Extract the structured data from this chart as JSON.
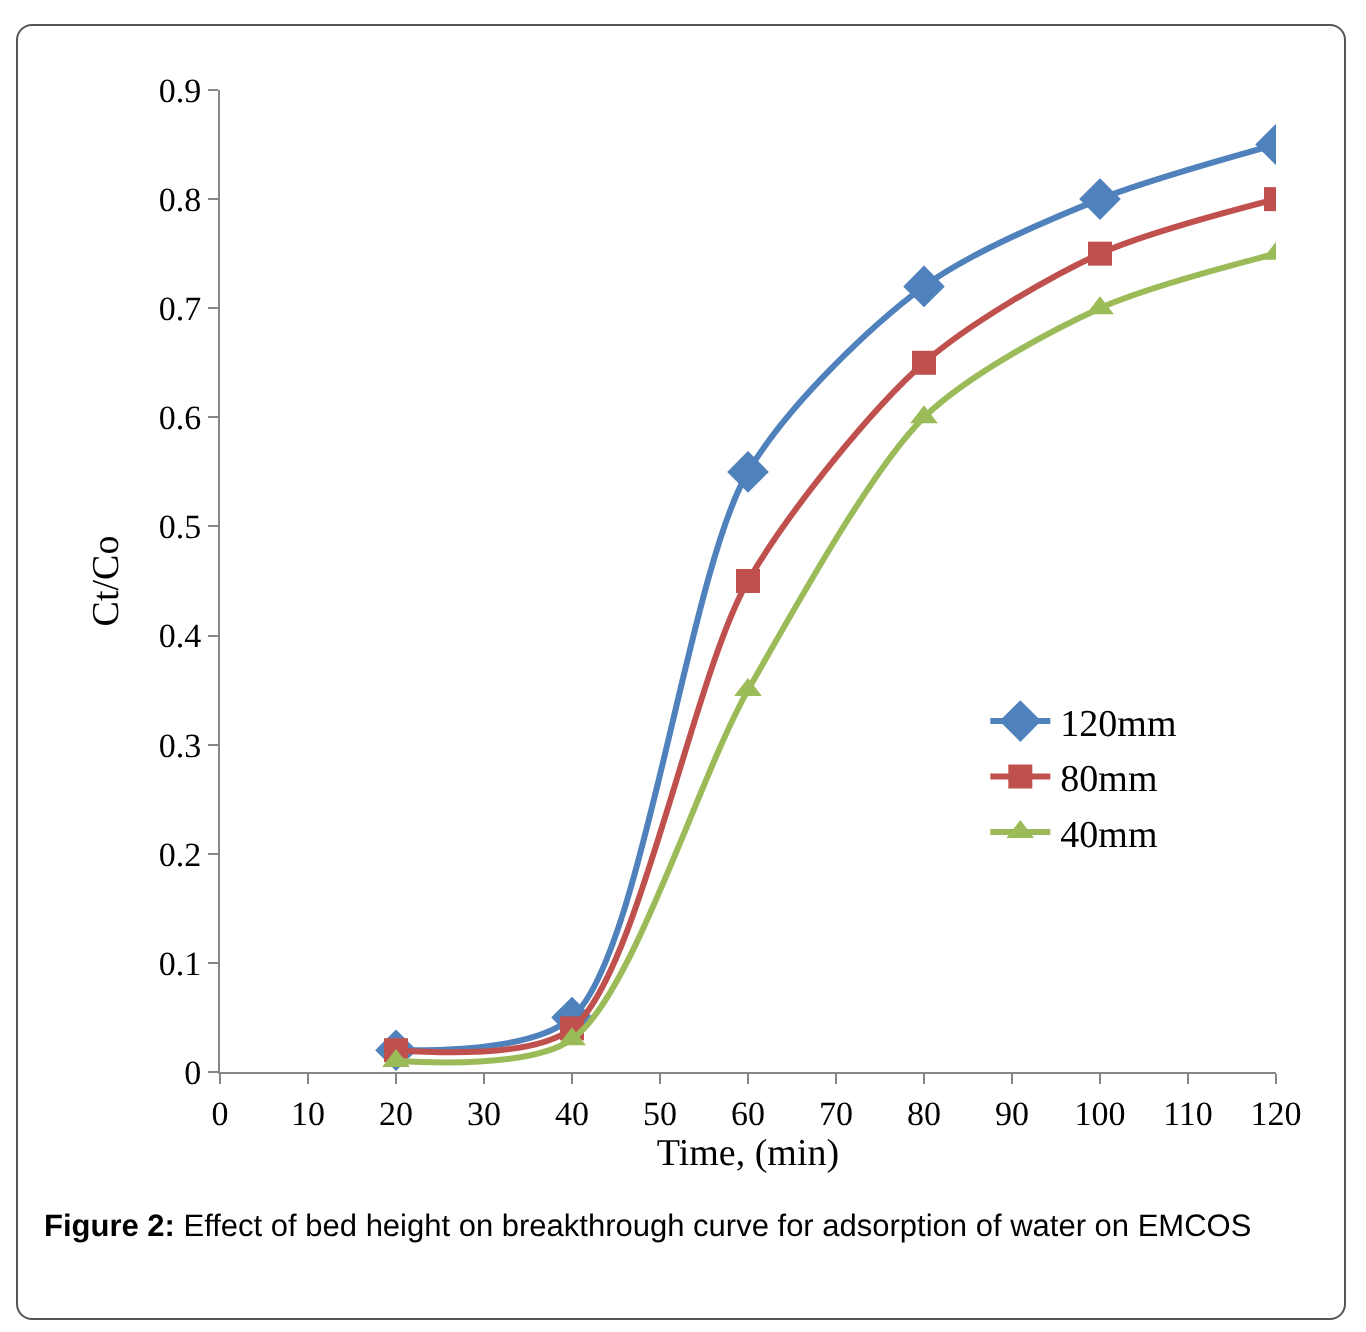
{
  "chart_data": {
    "type": "line",
    "xlabel": "Time, (min)",
    "ylabel": "Ct/Co",
    "x": [
      20,
      40,
      60,
      80,
      100,
      120
    ],
    "series": [
      {
        "name": "120mm",
        "color": "#4f81bd",
        "marker": "diamond",
        "values": [
          0.02,
          0.05,
          0.55,
          0.72,
          0.8,
          0.85
        ]
      },
      {
        "name": "80mm",
        "color": "#c0504d",
        "marker": "square",
        "values": [
          0.02,
          0.04,
          0.45,
          0.65,
          0.75,
          0.8
        ]
      },
      {
        "name": "40mm",
        "color": "#9bbb59",
        "marker": "triangle",
        "values": [
          0.01,
          0.03,
          0.35,
          0.6,
          0.7,
          0.75
        ]
      }
    ],
    "xlim": [
      0,
      120
    ],
    "xticks": [
      0,
      10,
      20,
      30,
      40,
      50,
      60,
      70,
      80,
      90,
      100,
      110,
      120
    ],
    "ylim": [
      0,
      0.9
    ],
    "yticks": [
      0,
      0.1,
      0.2,
      0.3,
      0.4,
      0.5,
      0.6,
      0.7,
      0.8,
      0.9
    ],
    "grid": false,
    "legend": "right",
    "line_style": "solid",
    "annotations": [
      "Figure 2: Effect of bed height on breakthrough curve for adsorption of water on EMCOS"
    ]
  }
}
